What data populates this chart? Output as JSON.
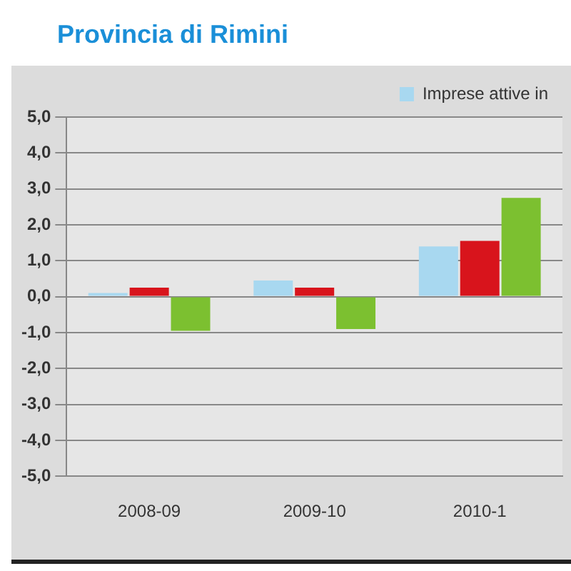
{
  "chart_data": {
    "type": "bar",
    "title": "Provincia di Rimini",
    "categories": [
      "2008-09",
      "2009-10",
      "2010-1"
    ],
    "series": [
      {
        "name": "Imprese attive in",
        "color": "#a8d8f0",
        "values": [
          0.1,
          0.45,
          1.4
        ]
      },
      {
        "color": "#d8141c",
        "values": [
          0.25,
          0.25,
          1.55
        ]
      },
      {
        "color": "#7cc030",
        "values": [
          -0.95,
          -0.9,
          2.75
        ]
      }
    ],
    "ylim": [
      -5,
      5
    ],
    "yticks": [
      {
        "value": 5,
        "label": "5,0"
      },
      {
        "value": 4,
        "label": "4,0"
      },
      {
        "value": 3,
        "label": "3,0"
      },
      {
        "value": 2,
        "label": "2,0"
      },
      {
        "value": 1,
        "label": "1,0"
      },
      {
        "value": 0,
        "label": "0,0"
      },
      {
        "value": -1,
        "label": "-1,0"
      },
      {
        "value": -2,
        "label": "-2,0"
      },
      {
        "value": -3,
        "label": "-3,0"
      },
      {
        "value": -4,
        "label": "-4,0"
      },
      {
        "value": -5,
        "label": "-5,0"
      }
    ],
    "grid": "y",
    "legend": "top right"
  }
}
